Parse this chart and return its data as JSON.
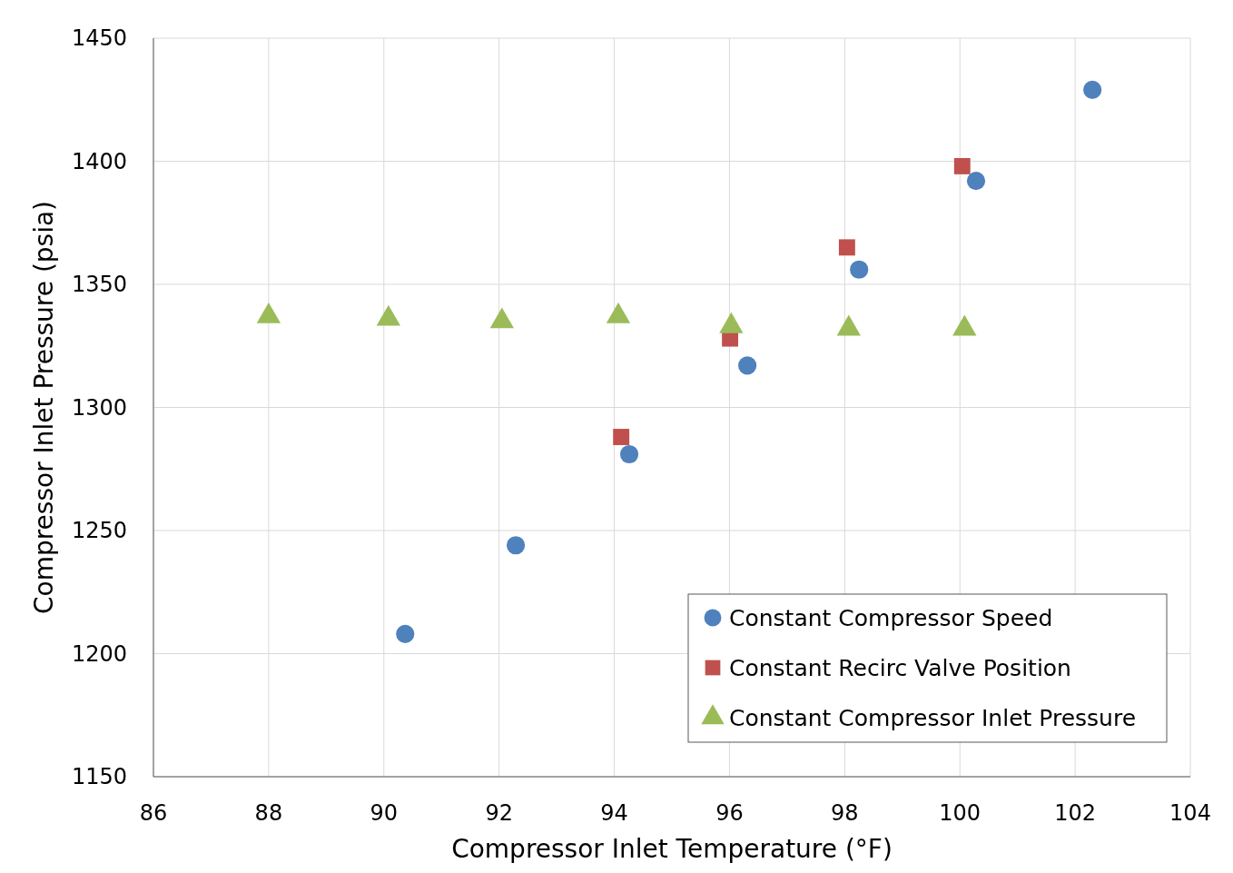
{
  "chart_data": {
    "type": "scatter",
    "xlabel": "Compressor Inlet Temperature (°F)",
    "ylabel": "Compressor Inlet Pressure (psia)",
    "xlim": [
      86,
      104
    ],
    "xticks": [
      86,
      88,
      90,
      92,
      94,
      96,
      98,
      100,
      102,
      104
    ],
    "ylim": [
      1150,
      1450
    ],
    "yticks": [
      1150,
      1200,
      1250,
      1300,
      1350,
      1400,
      1450
    ],
    "grid": true,
    "legend": "bottom right",
    "series": [
      {
        "name": "Constant Compressor Speed",
        "color": "#4f81bd",
        "marker": "circle",
        "x": [
          90.37,
          92.29,
          94.26,
          96.31,
          98.25,
          100.28,
          102.3
        ],
        "values": [
          1208,
          1244,
          1281,
          1317,
          1356,
          1392,
          1429
        ]
      },
      {
        "name": "Constant Recirc Valve Position",
        "color": "#c0504d",
        "marker": "square",
        "x": [
          94.12,
          96.01,
          98.04,
          100.04
        ],
        "values": [
          1288,
          1328,
          1365,
          1398
        ]
      },
      {
        "name": "Constant Compressor Inlet Pressure",
        "color": "#9bbb59",
        "marker": "triangle",
        "x": [
          88.0,
          90.08,
          92.05,
          94.07,
          96.03,
          98.07,
          100.08
        ],
        "values": [
          1337,
          1336,
          1335,
          1337,
          1333,
          1332,
          1332
        ]
      }
    ]
  }
}
